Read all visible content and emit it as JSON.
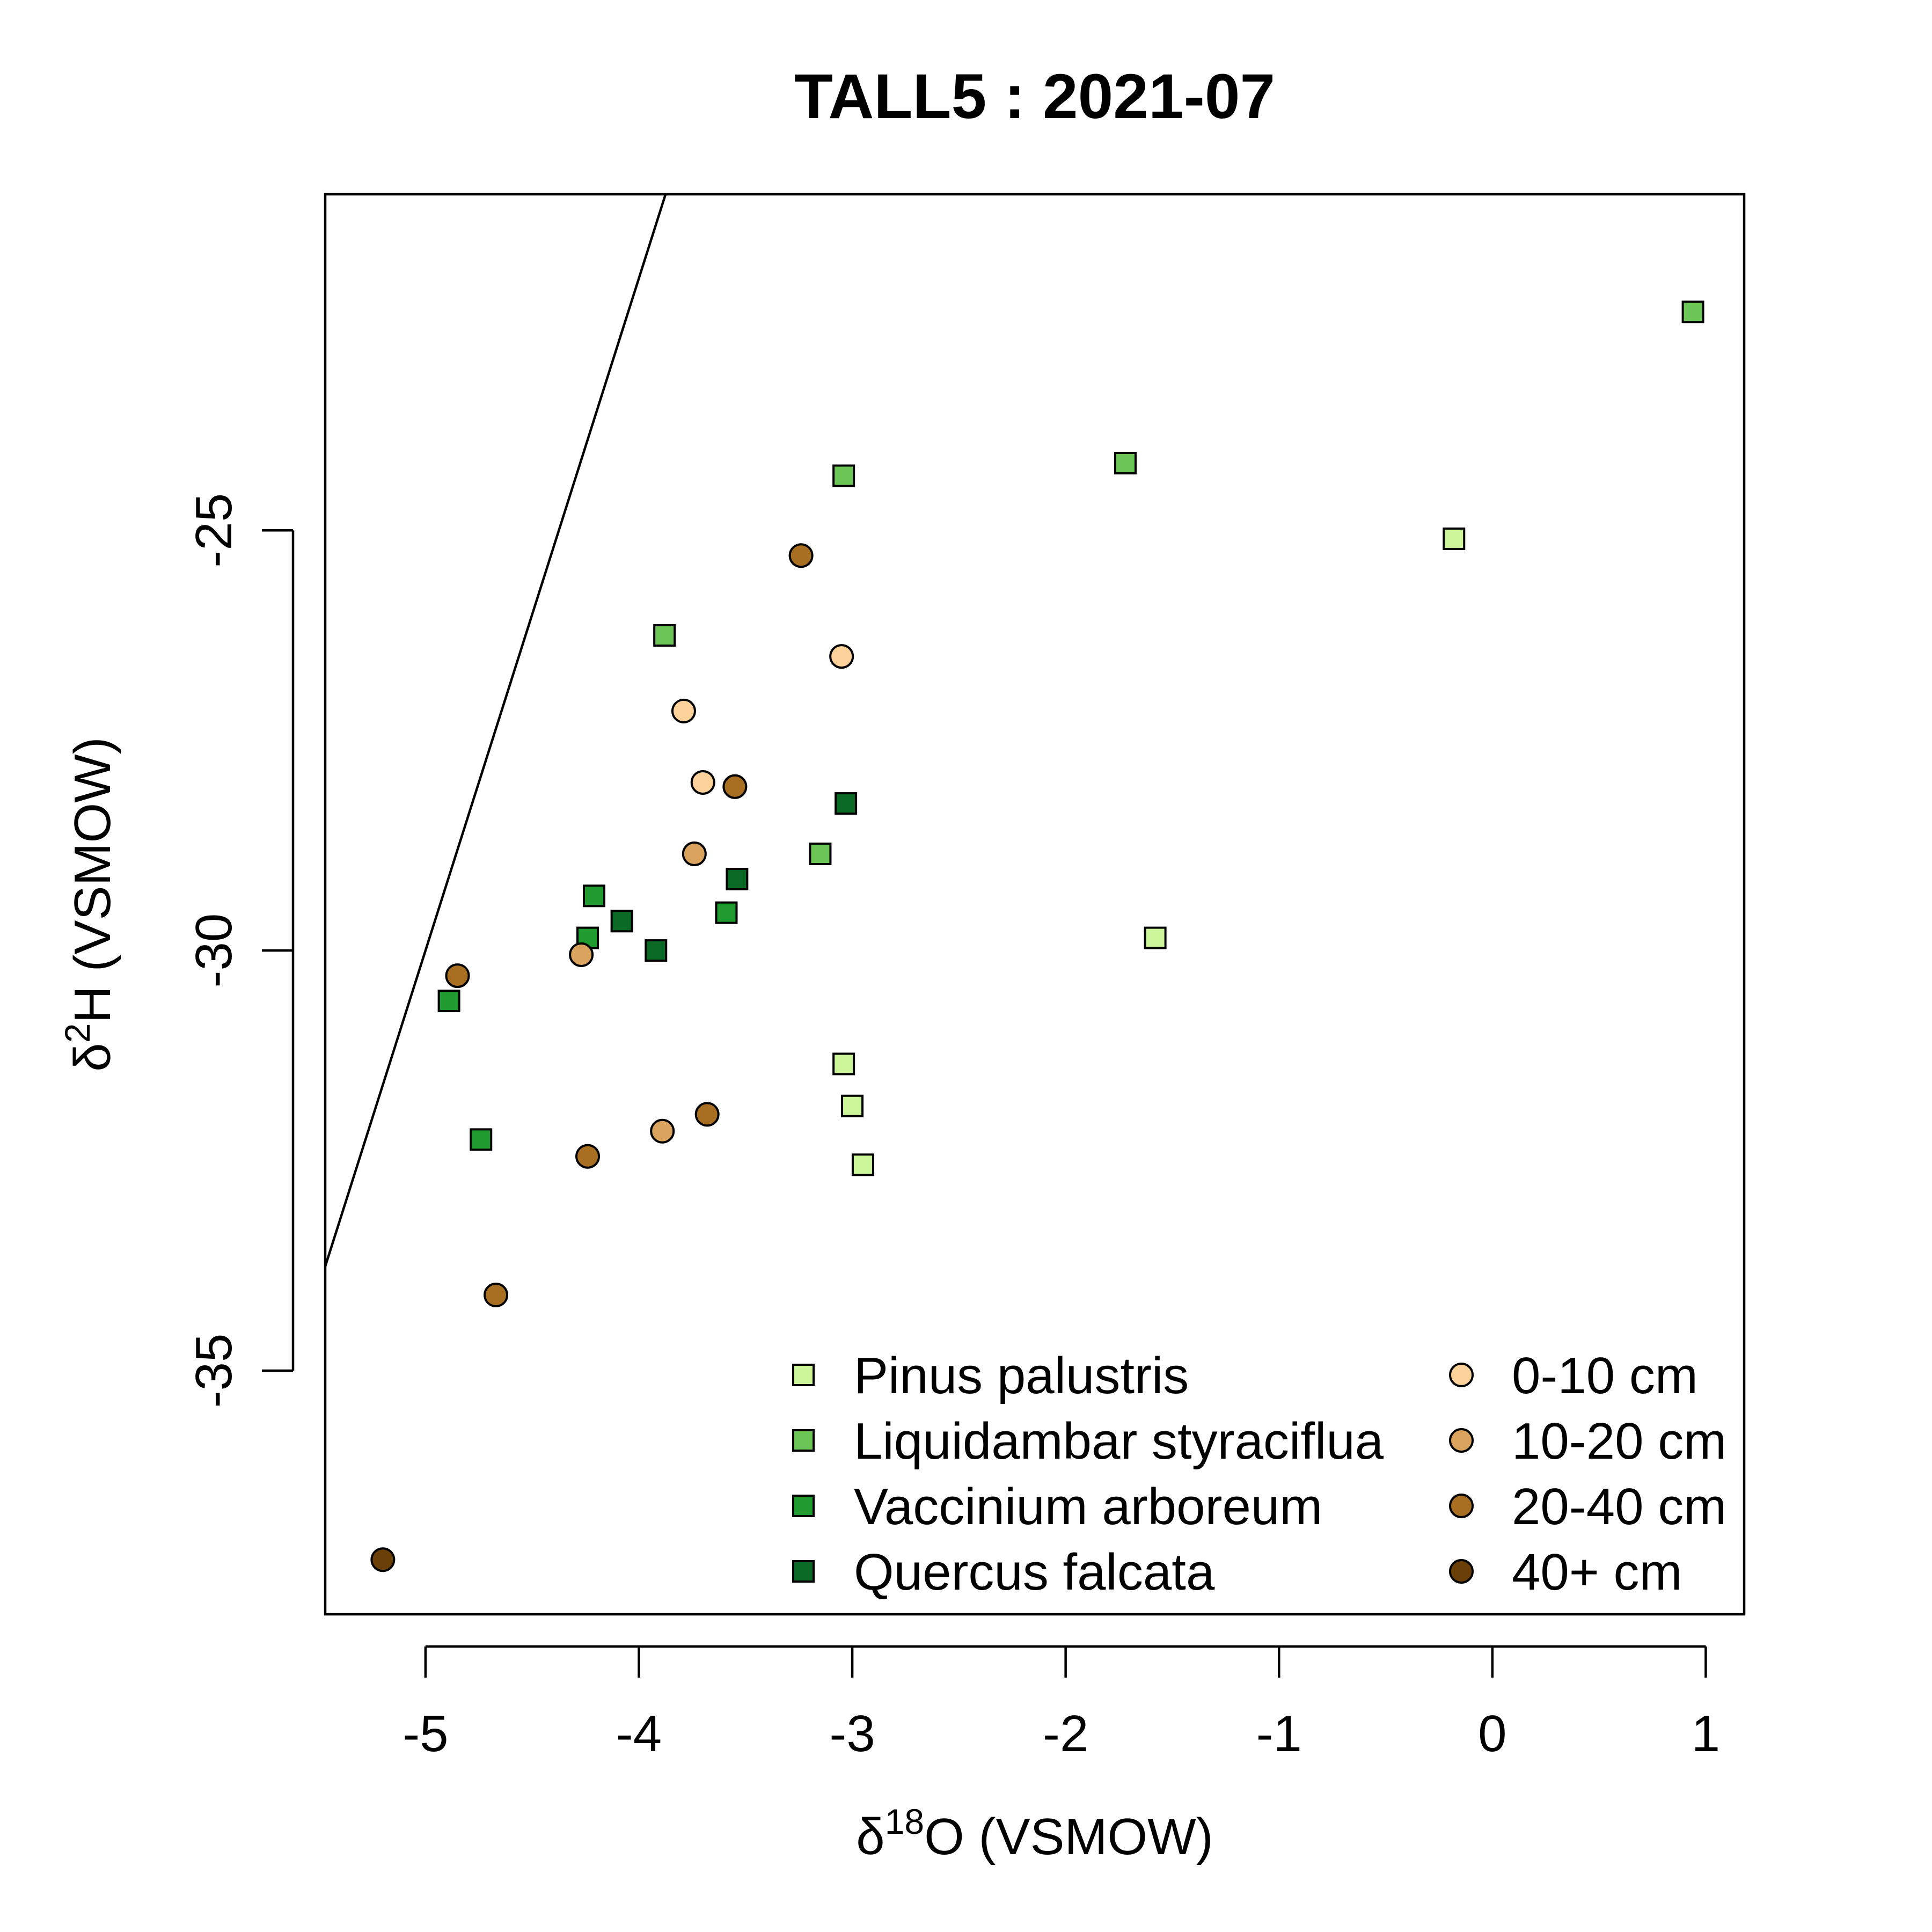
{
  "chart_data": {
    "type": "scatter",
    "title": "TALL5 : 2021-07",
    "xlabel": {
      "prefix": "δ",
      "sup": "18",
      "suffix": "O (VSMOW)"
    },
    "ylabel": {
      "prefix": "δ",
      "sup": "2",
      "suffix": "H (VSMOW)"
    },
    "xlim": [
      -5.47,
      1.18
    ],
    "ylim": [
      -37.9,
      -21.0
    ],
    "x_ticks": [
      -5,
      -4,
      -3,
      -2,
      -1,
      0,
      1
    ],
    "x_tick_labels": [
      "-5",
      "-4",
      "-3",
      "-2",
      "-1",
      "0",
      "1"
    ],
    "y_ticks": [
      -25,
      -30,
      -35
    ],
    "y_tick_labels": [
      "-25",
      "-30",
      "-35"
    ],
    "grid": false,
    "reference_line": {
      "slope": 8,
      "intercept": 10
    },
    "legend_position": "bottom-right",
    "series": [
      {
        "name": "Pinus palustris",
        "marker": "square",
        "color": "#CCF59A",
        "points": [
          [
            -0.18,
            -25.1
          ],
          [
            -1.58,
            -29.85
          ],
          [
            -3.04,
            -31.35
          ],
          [
            -3.0,
            -31.85
          ],
          [
            -2.95,
            -32.55
          ]
        ]
      },
      {
        "name": "Liquidambar styraciflua",
        "marker": "square",
        "color": "#6CC655",
        "points": [
          [
            0.94,
            -22.4
          ],
          [
            -1.72,
            -24.2
          ],
          [
            -3.04,
            -24.35
          ],
          [
            -3.88,
            -26.25
          ],
          [
            -3.15,
            -28.85
          ]
        ]
      },
      {
        "name": "Vaccinium arboreum",
        "marker": "square",
        "color": "#1F9A2E",
        "points": [
          [
            -4.21,
            -29.35
          ],
          [
            -4.24,
            -29.85
          ],
          [
            -3.59,
            -29.55
          ],
          [
            -4.89,
            -30.6
          ],
          [
            -4.74,
            -32.25
          ]
        ]
      },
      {
        "name": "Quercus falcata",
        "marker": "square",
        "color": "#0A6A25",
        "points": [
          [
            -3.03,
            -28.25
          ],
          [
            -3.54,
            -29.15
          ],
          [
            -4.08,
            -29.65
          ],
          [
            -3.92,
            -30.0
          ]
        ]
      },
      {
        "name": "0-10 cm",
        "marker": "circle",
        "color": "#FCD29A",
        "points": [
          [
            -3.05,
            -26.5
          ],
          [
            -3.79,
            -27.15
          ],
          [
            -3.7,
            -28.0
          ]
        ]
      },
      {
        "name": "10-20 cm",
        "marker": "circle",
        "color": "#D9A35E",
        "points": [
          [
            -3.74,
            -28.85
          ],
          [
            -4.27,
            -30.05
          ],
          [
            -3.89,
            -32.15
          ]
        ]
      },
      {
        "name": "20-40 cm",
        "marker": "circle",
        "color": "#A86F22",
        "points": [
          [
            -3.24,
            -25.3
          ],
          [
            -3.55,
            -28.05
          ],
          [
            -4.85,
            -30.3
          ],
          [
            -3.68,
            -31.95
          ],
          [
            -4.24,
            -32.45
          ],
          [
            -4.67,
            -34.1
          ]
        ]
      },
      {
        "name": "40+ cm",
        "marker": "circle",
        "color": "#6B3F08",
        "points": [
          [
            -5.2,
            -37.25
          ]
        ]
      }
    ]
  }
}
